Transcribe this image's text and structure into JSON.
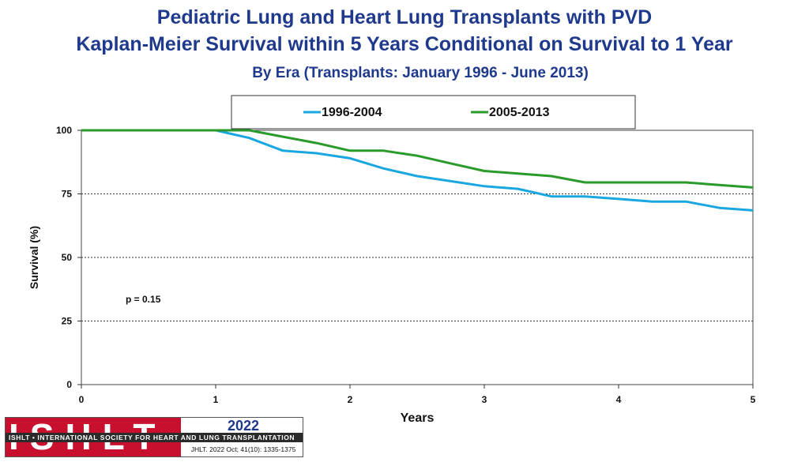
{
  "header": {
    "title_line1": "Pediatric Lung and Heart Lung Transplants with PVD",
    "title_line2": "Kaplan-Meier Survival within 5 Years Conditional on Survival to 1 Year",
    "subtitle": "By Era (Transplants: January 1996 - June 2013)"
  },
  "chart_data": {
    "type": "line",
    "title": "Kaplan-Meier Survival within 5 Years Conditional on Survival to 1 Year",
    "xlabel": "Years",
    "ylabel": "Survival (%)",
    "xlim": [
      0,
      5
    ],
    "ylim": [
      0,
      100
    ],
    "xticks": [
      "0",
      "1",
      "2",
      "3",
      "4",
      "5"
    ],
    "yticks": [
      "0",
      "25",
      "50",
      "75",
      "100"
    ],
    "grid": "horizontal dotted",
    "legend_position": "top",
    "annotation": "p = 0.15",
    "series": [
      {
        "name": "1996-2004",
        "color": "#1aa7e0",
        "x": [
          0,
          1,
          1.25,
          1.5,
          1.75,
          2,
          2.25,
          2.5,
          2.75,
          3,
          3.25,
          3.5,
          3.75,
          4,
          4.25,
          4.5,
          4.75,
          5
        ],
        "y": [
          100,
          100,
          97,
          92,
          91,
          89,
          85,
          82,
          80,
          78,
          77,
          74,
          74,
          73,
          72,
          72,
          69.5,
          68.5
        ]
      },
      {
        "name": "2005-2013",
        "color": "#2a9a2a",
        "x": [
          0,
          1,
          1.25,
          1.5,
          1.75,
          2,
          2.25,
          2.5,
          2.75,
          3,
          3.25,
          3.5,
          3.75,
          4,
          4.25,
          4.5,
          4.75,
          5
        ],
        "y": [
          100,
          100,
          100,
          97.5,
          95,
          92,
          92,
          90,
          87,
          84,
          83,
          82,
          79.5,
          79.5,
          79.5,
          79.5,
          78.5,
          77.5
        ]
      }
    ]
  },
  "footer": {
    "logo_text": "ISHLT",
    "organization": "ISHLT • INTERNATIONAL SOCIETY FOR HEART AND LUNG TRANSPLANTATION",
    "year": "2022",
    "citation": "JHLT. 2022 Oct; 41(10): 1335-1375"
  }
}
